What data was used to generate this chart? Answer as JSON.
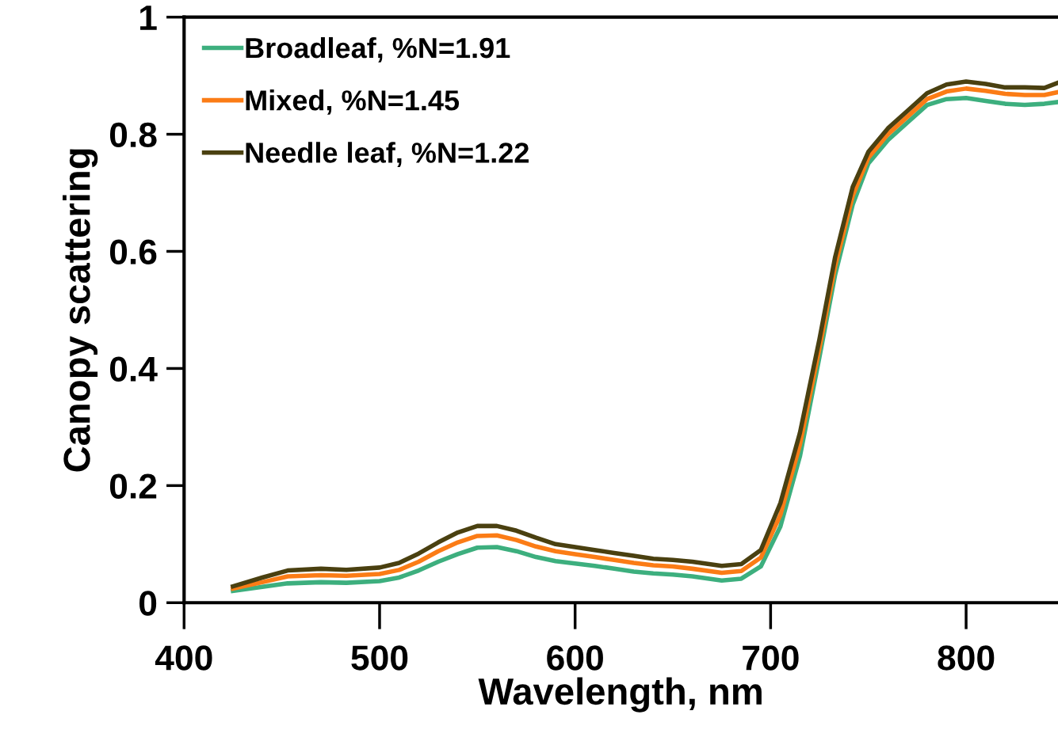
{
  "chart_data": {
    "type": "line",
    "xlabel": "Wavelength, nm",
    "ylabel": "Canopy scattering",
    "x": [
      425,
      440,
      453,
      470,
      483,
      500,
      510,
      520,
      530,
      540,
      550,
      560,
      570,
      580,
      590,
      600,
      610,
      620,
      630,
      640,
      650,
      660,
      675,
      685,
      695,
      705,
      715,
      725,
      733,
      742,
      750,
      760,
      770,
      780,
      790,
      800,
      810,
      820,
      830,
      840,
      847
    ],
    "series": [
      {
        "name": "Broadleaf, %N=1.91",
        "color": "#3daf7e",
        "values": [
          0.02,
          0.027,
          0.033,
          0.035,
          0.034,
          0.037,
          0.043,
          0.055,
          0.07,
          0.083,
          0.094,
          0.095,
          0.088,
          0.078,
          0.071,
          0.067,
          0.063,
          0.058,
          0.053,
          0.05,
          0.048,
          0.045,
          0.038,
          0.041,
          0.062,
          0.13,
          0.25,
          0.42,
          0.56,
          0.68,
          0.75,
          0.79,
          0.82,
          0.85,
          0.86,
          0.862,
          0.857,
          0.852,
          0.85,
          0.852,
          0.855
        ]
      },
      {
        "name": "Mixed, %N=1.45",
        "color": "#fb7c16",
        "values": [
          0.024,
          0.035,
          0.045,
          0.047,
          0.046,
          0.049,
          0.056,
          0.07,
          0.088,
          0.103,
          0.114,
          0.115,
          0.107,
          0.096,
          0.088,
          0.083,
          0.078,
          0.073,
          0.068,
          0.064,
          0.062,
          0.058,
          0.051,
          0.054,
          0.077,
          0.15,
          0.27,
          0.435,
          0.575,
          0.695,
          0.76,
          0.8,
          0.83,
          0.86,
          0.873,
          0.878,
          0.874,
          0.869,
          0.867,
          0.867,
          0.872
        ]
      },
      {
        "name": "Needle leaf, %N=1.22",
        "color": "#4a4010",
        "values": [
          0.028,
          0.043,
          0.055,
          0.058,
          0.056,
          0.06,
          0.068,
          0.084,
          0.103,
          0.12,
          0.131,
          0.131,
          0.123,
          0.111,
          0.1,
          0.095,
          0.09,
          0.085,
          0.08,
          0.075,
          0.073,
          0.07,
          0.063,
          0.066,
          0.09,
          0.17,
          0.29,
          0.45,
          0.59,
          0.71,
          0.77,
          0.81,
          0.84,
          0.87,
          0.885,
          0.89,
          0.886,
          0.88,
          0.88,
          0.879,
          0.888
        ]
      }
    ],
    "xlim": [
      400,
      847
    ],
    "ylim": [
      0,
      1
    ],
    "xticks": [
      400,
      500,
      600,
      700,
      800
    ],
    "yticks": [
      0,
      0.2,
      0.4,
      0.6,
      0.8,
      1
    ],
    "grid": false,
    "legend": "top left",
    "marker": "none",
    "line_style": "solid"
  }
}
